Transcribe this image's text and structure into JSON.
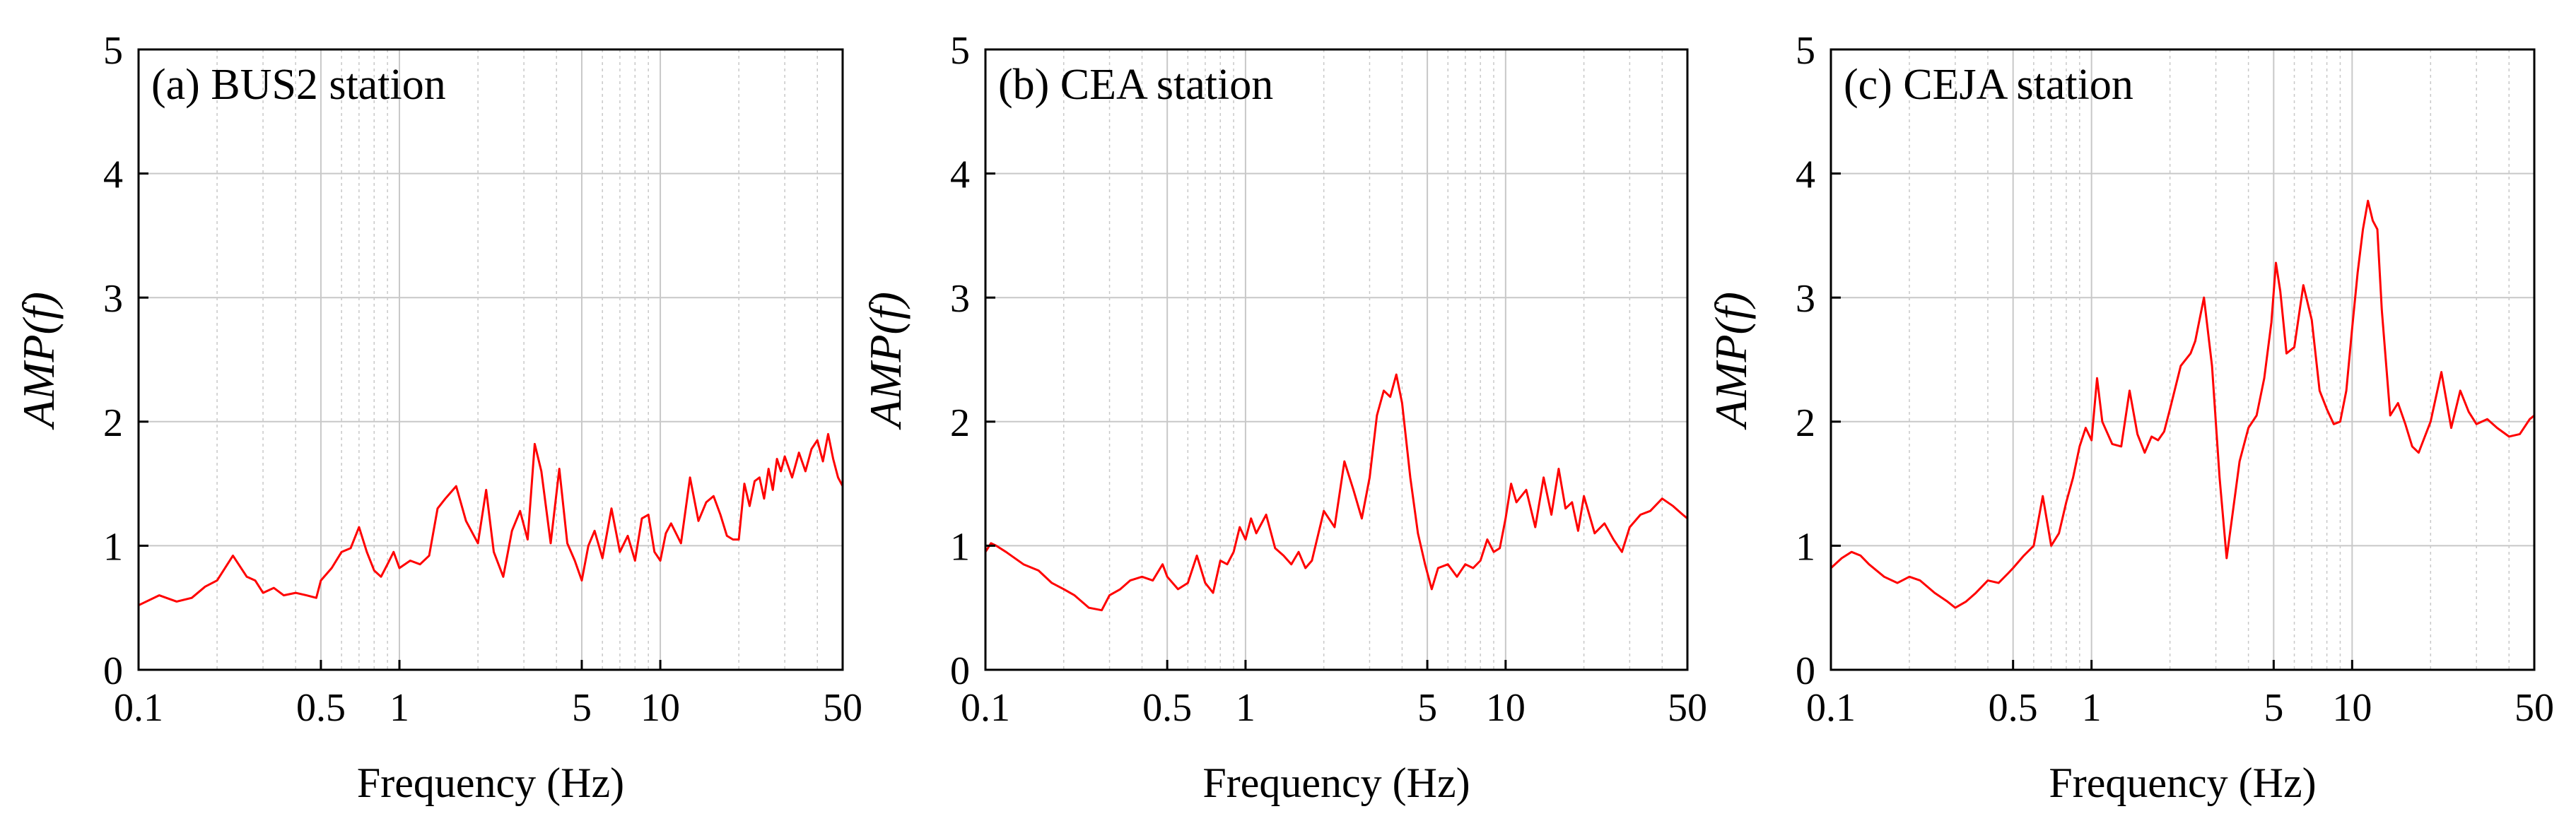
{
  "style": {
    "line_color": "#ff0000",
    "grid_color": "#c8c8c8",
    "frame_color": "#000000"
  },
  "chart_data": [
    {
      "type": "line",
      "title": "(a) BUS2 station",
      "xlabel": "Frequency (Hz)",
      "ylabel": "AMP(f)",
      "xscale": "log",
      "xlim": [
        0.1,
        50
      ],
      "ylim": [
        0,
        5
      ],
      "xticks": [
        0.1,
        0.5,
        1,
        5,
        10,
        50
      ],
      "xtick_labels": [
        "0.1",
        "0.5",
        "1",
        "5",
        "10",
        "50"
      ],
      "yticks": [
        0,
        1,
        2,
        3,
        4,
        5
      ],
      "ytick_labels": [
        "0",
        "1",
        "2",
        "3",
        "4",
        "5"
      ],
      "grid": true,
      "series": [
        {
          "name": "BUS2",
          "x": [
            0.1,
            0.12,
            0.14,
            0.16,
            0.18,
            0.2,
            0.23,
            0.26,
            0.28,
            0.3,
            0.33,
            0.36,
            0.4,
            0.44,
            0.48,
            0.5,
            0.55,
            0.6,
            0.65,
            0.7,
            0.75,
            0.8,
            0.85,
            0.9,
            0.95,
            1.0,
            1.1,
            1.2,
            1.3,
            1.4,
            1.5,
            1.65,
            1.8,
            2.0,
            2.15,
            2.3,
            2.5,
            2.7,
            2.9,
            3.1,
            3.3,
            3.5,
            3.8,
            4.1,
            4.4,
            4.7,
            5.0,
            5.3,
            5.6,
            6.0,
            6.5,
            7.0,
            7.5,
            8.0,
            8.5,
            9.0,
            9.5,
            10.0,
            10.5,
            11.0,
            12.0,
            13.0,
            14.0,
            15.0,
            16.0,
            17.0,
            18.0,
            19.0,
            20.0,
            21.0,
            22.0,
            23.0,
            24.0,
            25.0,
            26.0,
            27.0,
            28.0,
            29.0,
            30.0,
            32.0,
            34.0,
            36.0,
            38.0,
            40.0,
            42.0,
            44.0,
            46.0,
            48.0,
            50.0
          ],
          "y": [
            0.52,
            0.6,
            0.55,
            0.58,
            0.67,
            0.72,
            0.92,
            0.75,
            0.72,
            0.62,
            0.66,
            0.6,
            0.62,
            0.6,
            0.58,
            0.72,
            0.82,
            0.95,
            0.98,
            1.15,
            0.95,
            0.8,
            0.75,
            0.85,
            0.95,
            0.82,
            0.88,
            0.85,
            0.92,
            1.3,
            1.38,
            1.48,
            1.2,
            1.02,
            1.45,
            0.95,
            0.75,
            1.12,
            1.28,
            1.05,
            1.82,
            1.6,
            1.02,
            1.62,
            1.02,
            0.88,
            0.72,
            1.0,
            1.12,
            0.9,
            1.3,
            0.95,
            1.08,
            0.88,
            1.22,
            1.25,
            0.95,
            0.88,
            1.1,
            1.18,
            1.02,
            1.55,
            1.2,
            1.35,
            1.4,
            1.25,
            1.08,
            1.05,
            1.05,
            1.5,
            1.32,
            1.52,
            1.55,
            1.38,
            1.62,
            1.45,
            1.7,
            1.6,
            1.72,
            1.55,
            1.75,
            1.6,
            1.78,
            1.85,
            1.68,
            1.9,
            1.7,
            1.55,
            1.48
          ]
        }
      ]
    },
    {
      "type": "line",
      "title": "(b) CEA station",
      "xlabel": "Frequency (Hz)",
      "ylabel": "AMP(f)",
      "xscale": "log",
      "xlim": [
        0.1,
        50
      ],
      "ylim": [
        0,
        5
      ],
      "xticks": [
        0.1,
        0.5,
        1,
        5,
        10,
        50
      ],
      "xtick_labels": [
        "0.1",
        "0.5",
        "1",
        "5",
        "10",
        "50"
      ],
      "yticks": [
        0,
        1,
        2,
        3,
        4,
        5
      ],
      "ytick_labels": [
        "0",
        "1",
        "2",
        "3",
        "4",
        "5"
      ],
      "grid": true,
      "series": [
        {
          "name": "CEA",
          "x": [
            0.1,
            0.105,
            0.11,
            0.12,
            0.14,
            0.16,
            0.18,
            0.2,
            0.22,
            0.25,
            0.28,
            0.3,
            0.33,
            0.36,
            0.4,
            0.44,
            0.48,
            0.5,
            0.55,
            0.6,
            0.65,
            0.7,
            0.75,
            0.8,
            0.85,
            0.9,
            0.95,
            1.0,
            1.05,
            1.1,
            1.2,
            1.3,
            1.4,
            1.5,
            1.6,
            1.7,
            1.8,
            2.0,
            2.2,
            2.4,
            2.6,
            2.8,
            3.0,
            3.2,
            3.4,
            3.6,
            3.8,
            4.0,
            4.3,
            4.6,
            4.9,
            5.2,
            5.5,
            6.0,
            6.5,
            7.0,
            7.5,
            8.0,
            8.5,
            9.0,
            9.5,
            10.0,
            10.5,
            11.0,
            12.0,
            13.0,
            14.0,
            15.0,
            16.0,
            17.0,
            18.0,
            19.0,
            20.0,
            22.0,
            24.0,
            26.0,
            28.0,
            30.0,
            33.0,
            36.0,
            40.0,
            44.0,
            48.0,
            50.0
          ],
          "y": [
            0.95,
            1.02,
            1.0,
            0.95,
            0.85,
            0.8,
            0.7,
            0.65,
            0.6,
            0.5,
            0.48,
            0.6,
            0.65,
            0.72,
            0.75,
            0.72,
            0.85,
            0.75,
            0.65,
            0.7,
            0.92,
            0.7,
            0.62,
            0.88,
            0.85,
            0.95,
            1.15,
            1.05,
            1.22,
            1.1,
            1.25,
            0.98,
            0.92,
            0.85,
            0.95,
            0.82,
            0.88,
            1.28,
            1.15,
            1.68,
            1.45,
            1.22,
            1.55,
            2.05,
            2.25,
            2.2,
            2.38,
            2.15,
            1.55,
            1.1,
            0.85,
            0.65,
            0.82,
            0.85,
            0.75,
            0.85,
            0.82,
            0.88,
            1.05,
            0.95,
            0.98,
            1.22,
            1.5,
            1.35,
            1.45,
            1.15,
            1.55,
            1.25,
            1.62,
            1.3,
            1.35,
            1.12,
            1.4,
            1.1,
            1.18,
            1.05,
            0.95,
            1.15,
            1.25,
            1.28,
            1.38,
            1.32,
            1.25,
            1.22
          ]
        }
      ]
    },
    {
      "type": "line",
      "title": "(c) CEJA station",
      "xlabel": "Frequency (Hz)",
      "ylabel": "AMP(f)",
      "xscale": "log",
      "xlim": [
        0.1,
        50
      ],
      "ylim": [
        0,
        5
      ],
      "xticks": [
        0.1,
        0.5,
        1,
        5,
        10,
        50
      ],
      "xtick_labels": [
        "0.1",
        "0.5",
        "1",
        "5",
        "10",
        "50"
      ],
      "yticks": [
        0,
        1,
        2,
        3,
        4,
        5
      ],
      "ytick_labels": [
        "0",
        "1",
        "2",
        "3",
        "4",
        "5"
      ],
      "grid": true,
      "series": [
        {
          "name": "CEJA",
          "x": [
            0.1,
            0.11,
            0.12,
            0.13,
            0.14,
            0.16,
            0.18,
            0.2,
            0.22,
            0.25,
            0.28,
            0.3,
            0.33,
            0.36,
            0.4,
            0.44,
            0.48,
            0.5,
            0.55,
            0.6,
            0.65,
            0.7,
            0.75,
            0.8,
            0.85,
            0.9,
            0.95,
            1.0,
            1.05,
            1.1,
            1.2,
            1.3,
            1.4,
            1.5,
            1.6,
            1.7,
            1.8,
            1.9,
            2.0,
            2.2,
            2.4,
            2.5,
            2.7,
            2.9,
            3.1,
            3.3,
            3.5,
            3.7,
            4.0,
            4.3,
            4.6,
            4.9,
            5.1,
            5.3,
            5.6,
            6.0,
            6.5,
            7.0,
            7.5,
            8.0,
            8.5,
            9.0,
            9.5,
            10.0,
            10.5,
            11.0,
            11.5,
            12.0,
            12.5,
            13.0,
            14.0,
            15.0,
            16.0,
            17.0,
            18.0,
            20.0,
            22.0,
            24.0,
            26.0,
            28.0,
            30.0,
            33.0,
            36.0,
            40.0,
            44.0,
            48.0,
            50.0
          ],
          "y": [
            0.82,
            0.9,
            0.95,
            0.92,
            0.85,
            0.75,
            0.7,
            0.75,
            0.72,
            0.62,
            0.55,
            0.5,
            0.55,
            0.62,
            0.72,
            0.7,
            0.78,
            0.82,
            0.92,
            1.0,
            1.4,
            1.0,
            1.1,
            1.35,
            1.55,
            1.8,
            1.95,
            1.85,
            2.35,
            2.0,
            1.82,
            1.8,
            2.25,
            1.9,
            1.75,
            1.88,
            1.85,
            1.92,
            2.1,
            2.45,
            2.55,
            2.65,
            3.0,
            2.45,
            1.55,
            0.9,
            1.3,
            1.68,
            1.95,
            2.05,
            2.35,
            2.8,
            3.28,
            3.05,
            2.55,
            2.6,
            3.1,
            2.82,
            2.25,
            2.1,
            1.98,
            2.0,
            2.25,
            2.75,
            3.2,
            3.55,
            3.78,
            3.62,
            3.55,
            2.9,
            2.05,
            2.15,
            1.98,
            1.8,
            1.75,
            2.0,
            2.4,
            1.95,
            2.25,
            2.08,
            1.98,
            2.02,
            1.95,
            1.88,
            1.9,
            2.02,
            2.05
          ]
        }
      ]
    }
  ]
}
